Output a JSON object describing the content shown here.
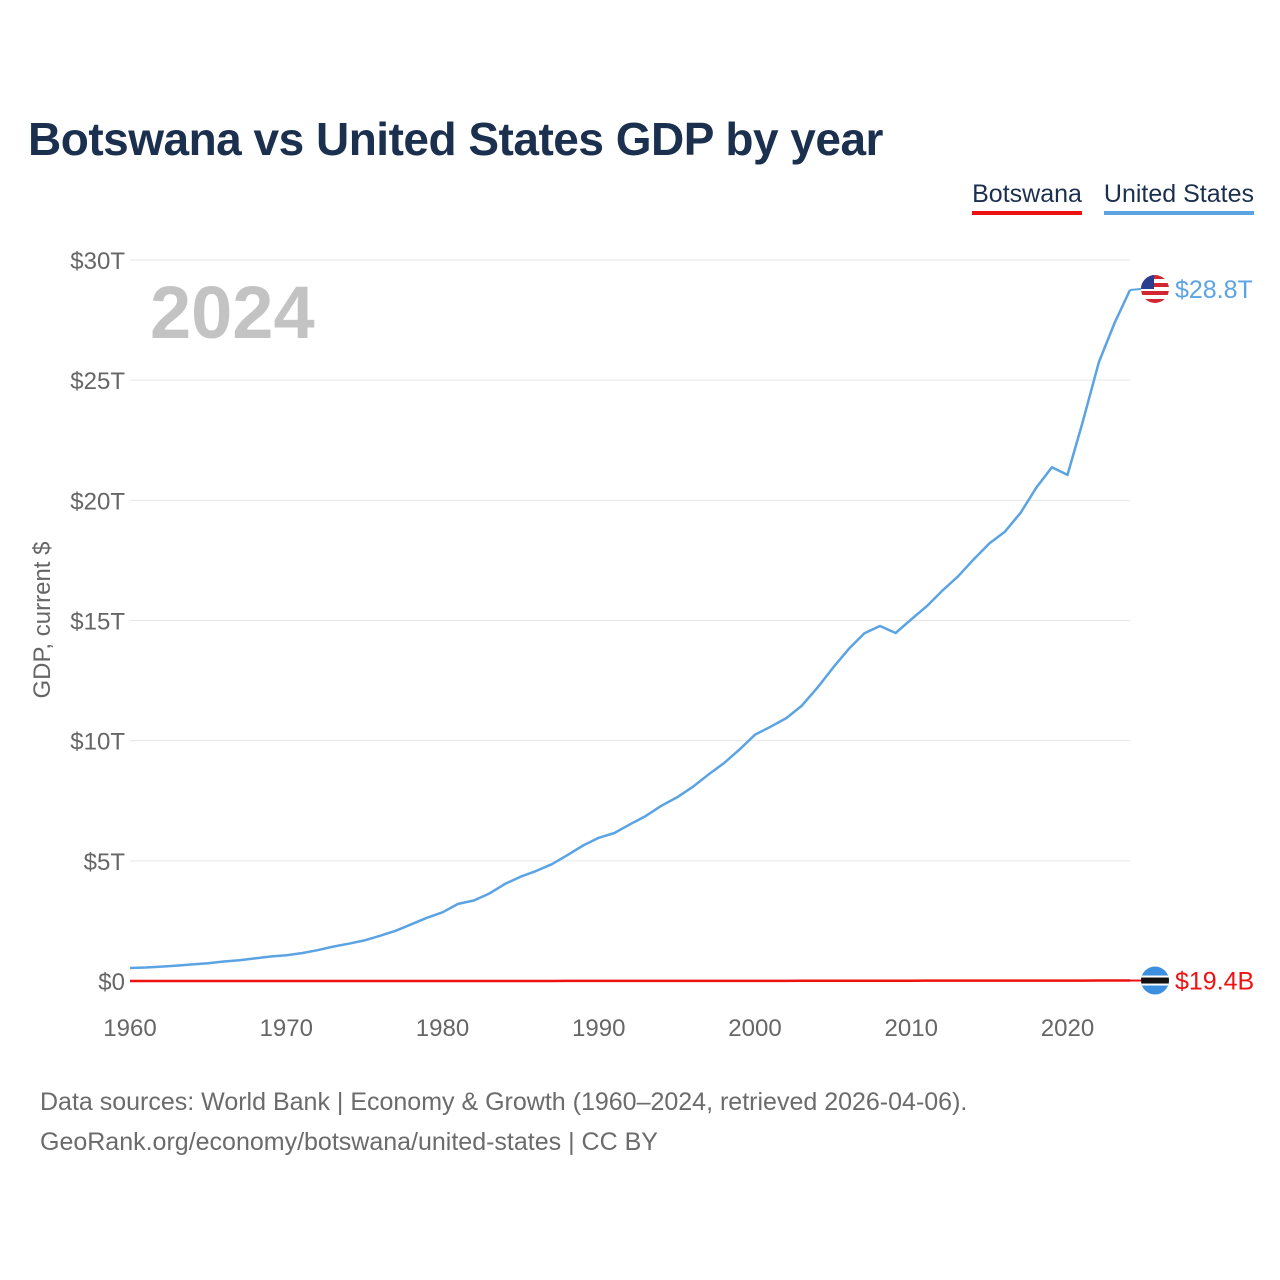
{
  "title": "Botswana vs United States GDP by year",
  "year_label": "2024",
  "legend": {
    "botswana": {
      "label": "Botswana",
      "color": "#ee1111"
    },
    "united_states": {
      "label": "United States",
      "color": "#5ba3e3"
    }
  },
  "footer": {
    "line1": "Data sources: World Bank | Economy & Growth (1960–2024, retrieved 2026-04-06).",
    "line2": "GeoRank.org/economy/botswana/united-states | CC BY"
  },
  "chart_data": {
    "type": "line",
    "title": "Botswana vs United States GDP by year",
    "xlabel": "",
    "ylabel": "GDP, current $",
    "xlim": [
      1960,
      2024
    ],
    "ylim": [
      0,
      30
    ],
    "y_unit": "trillion USD",
    "x_ticks": [
      "1960",
      "1970",
      "1980",
      "1990",
      "2000",
      "2010",
      "2020"
    ],
    "y_ticks": [
      "$0",
      "$5T",
      "$10T",
      "$15T",
      "$20T",
      "$25T",
      "$30T"
    ],
    "y_tick_values": [
      0,
      5,
      10,
      15,
      20,
      25,
      30
    ],
    "grid": true,
    "x": [
      1960,
      1961,
      1962,
      1963,
      1964,
      1965,
      1966,
      1967,
      1968,
      1969,
      1970,
      1971,
      1972,
      1973,
      1974,
      1975,
      1976,
      1977,
      1978,
      1979,
      1980,
      1981,
      1982,
      1983,
      1984,
      1985,
      1986,
      1987,
      1988,
      1989,
      1990,
      1991,
      1992,
      1993,
      1994,
      1995,
      1996,
      1997,
      1998,
      1999,
      2000,
      2001,
      2002,
      2003,
      2004,
      2005,
      2006,
      2007,
      2008,
      2009,
      2010,
      2011,
      2012,
      2013,
      2014,
      2015,
      2016,
      2017,
      2018,
      2019,
      2020,
      2021,
      2022,
      2023,
      2024
    ],
    "series": [
      {
        "name": "Botswana",
        "color": "#ee1111",
        "end_label": "$19.4B",
        "values": [
          3e-05,
          3e-05,
          3e-05,
          4e-05,
          4e-05,
          5e-05,
          5e-05,
          6e-05,
          7e-05,
          9e-05,
          0.0001,
          0.00013,
          0.00019,
          0.00028,
          0.00033,
          0.00038,
          0.00041,
          0.00048,
          0.0006,
          0.00083,
          0.0011,
          0.0011,
          0.001,
          0.0011,
          0.0011,
          0.001,
          0.0012,
          0.0017,
          0.0023,
          0.0027,
          0.0035,
          0.0037,
          0.0039,
          0.0039,
          0.0043,
          0.0045,
          0.0047,
          0.0052,
          0.0049,
          0.0057,
          0.0059,
          0.0058,
          0.0055,
          0.0079,
          0.0093,
          0.0102,
          0.0106,
          0.0108,
          0.0109,
          0.0101,
          0.0127,
          0.0153,
          0.0148,
          0.0147,
          0.0158,
          0.0146,
          0.0157,
          0.0169,
          0.018,
          0.0175,
          0.015,
          0.0177,
          0.0203,
          0.0195,
          0.0194
        ]
      },
      {
        "name": "United States",
        "color": "#5ba3e3",
        "end_label": "$28.8T",
        "values": [
          0.54,
          0.56,
          0.6,
          0.64,
          0.69,
          0.74,
          0.81,
          0.86,
          0.94,
          1.02,
          1.07,
          1.16,
          1.28,
          1.43,
          1.55,
          1.69,
          1.88,
          2.09,
          2.36,
          2.63,
          2.86,
          3.21,
          3.35,
          3.64,
          4.04,
          4.34,
          4.58,
          4.86,
          5.24,
          5.64,
          5.96,
          6.16,
          6.52,
          6.86,
          7.29,
          7.64,
          8.07,
          8.58,
          9.06,
          9.63,
          10.25,
          10.58,
          10.94,
          11.46,
          12.21,
          13.04,
          13.82,
          14.47,
          14.77,
          14.48,
          15.05,
          15.6,
          16.25,
          16.84,
          17.55,
          18.21,
          18.7,
          19.48,
          20.53,
          21.38,
          21.06,
          23.32,
          25.74,
          27.36,
          28.75
        ]
      }
    ]
  }
}
